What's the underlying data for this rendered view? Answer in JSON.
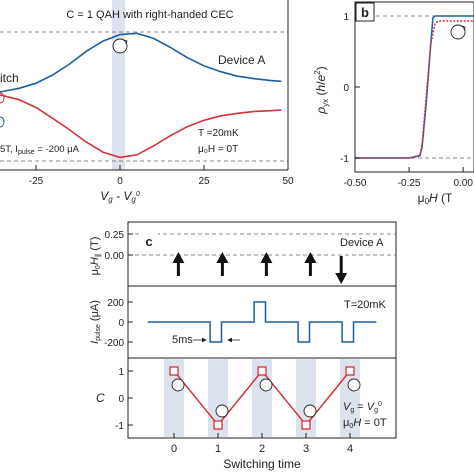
{
  "panel_a": {
    "header": "C = 1 QAH with right-handed CEC",
    "legend_fragment": "itch",
    "device_label": "Device A",
    "conditions_fragment": "5T, I",
    "pulse_subscript": "pulse",
    "pulse_value": " = -200 μA",
    "temperature": "T =20mK",
    "field": "μ₀H = 0T",
    "xlabel": "V_g - V_g^0"
  },
  "panel_b": {
    "label": "b",
    "ylabel": "ρ_yx (h/e²)",
    "xlabel": "μ₀H (T"
  },
  "panel_c": {
    "label": "c",
    "device_label": "Device A",
    "temperature": "T=20mK",
    "pulse_width_label": "5ms",
    "gate_condition": "V_g = V_g^0",
    "field_condition": "μ₀H = 0T",
    "xlabel": "Switching time",
    "row_ylabels": [
      "μ₀H_∥ (T)",
      "I_pulse (μA)",
      "C"
    ]
  },
  "colors": {
    "red": "#d4323a",
    "blue": "#1f5f9e",
    "shade": "#dde3ee",
    "dashed": "#666666"
  },
  "chart_data": [
    {
      "type": "line",
      "panel": "a",
      "title": "C = 1 QAH with right-handed CEC",
      "xlabel": "V_g - V_g^0",
      "ylabel": "",
      "xlim": [
        -45,
        50
      ],
      "xticks": [
        -25,
        0,
        25,
        50
      ],
      "grid": false,
      "series": [
        {
          "color": "#1f5f9e",
          "x": [
            -45,
            -40,
            -35,
            -30,
            -25,
            -20,
            -15,
            -10,
            -5,
            0,
            5,
            10,
            15,
            20,
            25,
            30,
            35,
            40,
            45,
            48
          ],
          "y": [
            0.02,
            0.04,
            0.07,
            0.12,
            0.2,
            0.33,
            0.5,
            0.7,
            0.86,
            0.96,
            0.98,
            0.9,
            0.76,
            0.6,
            0.47,
            0.38,
            0.31,
            0.27,
            0.24,
            0.23
          ]
        },
        {
          "color": "#d4323a",
          "x": [
            -45,
            -40,
            -35,
            -30,
            -25,
            -20,
            -15,
            -10,
            -5,
            0,
            5,
            10,
            15,
            20,
            25,
            30,
            35,
            40,
            45,
            48
          ],
          "y": [
            0.05,
            0.04,
            0.01,
            -0.06,
            -0.18,
            -0.35,
            -0.53,
            -0.72,
            -0.88,
            -0.96,
            -0.92,
            -0.78,
            -0.62,
            -0.48,
            -0.38,
            -0.31,
            -0.27,
            -0.24,
            -0.23,
            -0.22
          ]
        }
      ]
    },
    {
      "type": "line",
      "panel": "b",
      "xlabel": "μ₀H (T",
      "ylabel": "ρ_yx (h/e²)",
      "xlim": [
        -0.5,
        0.05
      ],
      "xticks": [
        -0.5,
        -0.25,
        0.0
      ],
      "ylim": [
        -1.15,
        1.15
      ],
      "yticks": [
        -1,
        0,
        1
      ],
      "series": [
        {
          "color": "#1f5f9e",
          "x": [
            -0.5,
            -0.25,
            -0.2,
            -0.19,
            -0.17,
            -0.15,
            -0.14,
            -0.13,
            0.05
          ],
          "y": [
            -1,
            -1,
            -0.97,
            -0.85,
            -0.2,
            0.6,
            0.97,
            1,
            1
          ]
        },
        {
          "color": "#d4323a",
          "x": [
            -0.5,
            -0.25,
            -0.2,
            -0.19,
            -0.17,
            -0.15,
            -0.13,
            -0.11,
            0.05
          ],
          "y": [
            -1,
            -1,
            -0.96,
            -0.8,
            -0.1,
            0.6,
            0.9,
            0.93,
            0.93
          ]
        }
      ]
    },
    {
      "type": "scatter",
      "panel": "c-top",
      "ylabel": "μ₀H_∥ (T)",
      "yticks": [
        0.0,
        0.25
      ],
      "markers": [
        {
          "x": 0.1,
          "direction": "up"
        },
        {
          "x": 1.1,
          "direction": "up"
        },
        {
          "x": 2.1,
          "direction": "up"
        },
        {
          "x": 3.1,
          "direction": "up"
        },
        {
          "x": 3.8,
          "direction": "down"
        }
      ]
    },
    {
      "type": "line",
      "panel": "c-middle",
      "ylabel": "I_pulse (μA)",
      "yticks": [
        -200,
        0,
        200
      ],
      "xlim": [
        -0.6,
        4.6
      ],
      "series": [
        {
          "color": "#1f5f9e",
          "x": [
            -0.6,
            0.82,
            0.82,
            1.08,
            1.08,
            1.82,
            1.82,
            2.08,
            2.08,
            2.82,
            2.82,
            3.08,
            3.08,
            3.82,
            3.82,
            4.08,
            4.08,
            4.6
          ],
          "y": [
            0,
            0,
            -200,
            -200,
            0,
            0,
            200,
            200,
            0,
            0,
            -200,
            -200,
            0,
            0,
            -200,
            -200,
            0,
            0
          ]
        }
      ]
    },
    {
      "type": "line",
      "panel": "c-bottom",
      "xlabel": "Switching time",
      "ylabel": "C",
      "xlim": [
        -0.6,
        4.6
      ],
      "xticks": [
        0,
        1,
        2,
        3,
        4
      ],
      "ylim": [
        -1.4,
        1.4
      ],
      "yticks": [
        -1,
        0,
        1
      ],
      "series": [
        {
          "color": "#d4323a",
          "x": [
            0,
            1,
            2,
            3,
            4
          ],
          "y": [
            1,
            -1,
            1,
            -1,
            1
          ]
        }
      ]
    }
  ]
}
